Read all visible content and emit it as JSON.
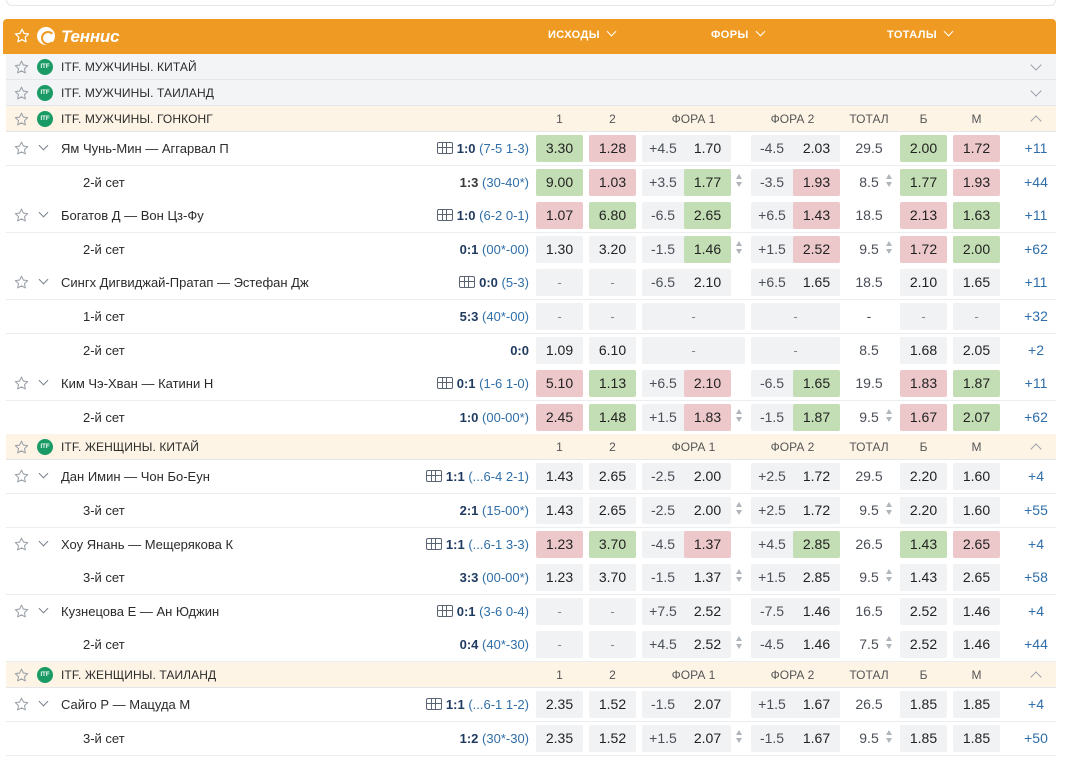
{
  "header": {
    "sport": "Теннис",
    "groups": [
      "ИСХОДЫ",
      "ФОРЫ",
      "ТОТАЛЫ"
    ],
    "accent": "#ee9a23"
  },
  "colheaders": [
    "1",
    "2",
    "ФОРА 1",
    "ФОРА 2",
    "ТОТАЛ",
    "Б",
    "М"
  ],
  "leagues": [
    {
      "name": "ITF. МУЖЧИНЫ. КИТАЙ",
      "icon": "ITF",
      "expanded": false
    },
    {
      "name": "ITF. МУЖЧИНЫ. ТАИЛАНД",
      "icon": "ITF",
      "expanded": false
    },
    {
      "name": "ITF. МУЖЧИНЫ. ГОНКОНГ",
      "icon": "ITF",
      "expanded": true
    },
    {
      "name": "ITF. ЖЕНЩИНЫ. КИТАЙ",
      "icon": "ITF",
      "expanded": true
    },
    {
      "name": "ITF. ЖЕНЩИНЫ. ТАИЛАНД",
      "icon": "ITF",
      "expanded": true
    }
  ],
  "rows": [
    {
      "kind": "match",
      "teams": "Ям Чунь-Мин — Аггарвал П",
      "score": "1:0",
      "detail": "(7-5 1-3)",
      "o1": "3.30",
      "o1s": "up",
      "o2": "1.28",
      "o2s": "down",
      "h1": "+4.5",
      "h1o": "1.70",
      "h1s": "",
      "h2": "-4.5",
      "h2o": "2.03",
      "h2s": "",
      "tot": "29.5",
      "b": "2.00",
      "bs": "up",
      "m": "1.72",
      "ms": "down",
      "more": "+11"
    },
    {
      "kind": "set",
      "teams": "2-й сет",
      "score": "1:3",
      "detail": "(30-40*)",
      "hl": true,
      "o1": "9.00",
      "o1s": "up",
      "o2": "1.03",
      "o2s": "down",
      "h1": "+3.5",
      "h1o": "1.77",
      "h1s": "up",
      "h2": "-3.5",
      "h2o": "1.93",
      "h2s": "down",
      "tot": "8.5",
      "b": "1.77",
      "bs": "up",
      "m": "1.93",
      "ms": "down",
      "more": "+44",
      "spin": true
    },
    {
      "kind": "match",
      "teams": "Богатов Д — Вон Цз-Фу",
      "score": "1:0",
      "detail": "(6-2 0-1)",
      "o1": "1.07",
      "o1s": "down",
      "o2": "6.80",
      "o2s": "up",
      "h1": "-6.5",
      "h1o": "2.65",
      "h1s": "up",
      "h2": "+6.5",
      "h2o": "1.43",
      "h2s": "down",
      "tot": "18.5",
      "b": "2.13",
      "bs": "down",
      "m": "1.63",
      "ms": "up",
      "more": "+11"
    },
    {
      "kind": "set",
      "teams": "2-й сет",
      "score": "0:1",
      "detail": "(00*-00)",
      "o1": "1.30",
      "o1s": "",
      "o2": "3.20",
      "o2s": "",
      "h1": "-1.5",
      "h1o": "1.46",
      "h1s": "up",
      "h2": "+1.5",
      "h2o": "2.52",
      "h2s": "down",
      "tot": "9.5",
      "b": "1.72",
      "bs": "down",
      "m": "2.00",
      "ms": "up",
      "more": "+62",
      "spin": true
    },
    {
      "kind": "match",
      "teams": "Сингх Дигвиджай-Пратап — Эстефан Дж",
      "score": "0:0",
      "detail": "(5-3)",
      "o1": "-",
      "o1s": "dim",
      "o2": "-",
      "o2s": "dim",
      "h1": "-6.5",
      "h1o": "2.10",
      "h1s": "",
      "h2": "+6.5",
      "h2o": "1.65",
      "h2s": "",
      "tot": "18.5",
      "b": "2.10",
      "bs": "",
      "m": "1.65",
      "ms": "",
      "more": "+11"
    },
    {
      "kind": "set",
      "teams": "1-й сет",
      "score": "5:3",
      "detail": "(40*-00)",
      "o1": "-",
      "o1s": "dim",
      "o2": "-",
      "o2s": "dim",
      "h1dash": true,
      "h1": "-",
      "h2dash": true,
      "h2": "-",
      "tot": "-",
      "b": "-",
      "bs": "dim",
      "m": "-",
      "ms": "dim",
      "more": "+32"
    },
    {
      "kind": "set",
      "teams": "2-й сет",
      "score": "0:0",
      "detail": "",
      "o1": "1.09",
      "o1s": "",
      "o2": "6.10",
      "o2s": "",
      "h1dash": true,
      "h1": "-",
      "h2dash": true,
      "h2": "-",
      "tot": "8.5",
      "b": "1.68",
      "bs": "",
      "m": "2.05",
      "ms": "",
      "more": "+2"
    },
    {
      "kind": "match",
      "teams": "Ким Чэ-Хван — Катини Н",
      "score": "0:1",
      "detail": "(1-6 1-0)",
      "o1": "5.10",
      "o1s": "down",
      "o2": "1.13",
      "o2s": "up",
      "h1": "+6.5",
      "h1o": "2.10",
      "h1s": "down",
      "h2": "-6.5",
      "h2o": "1.65",
      "h2s": "up",
      "tot": "19.5",
      "b": "1.83",
      "bs": "down",
      "m": "1.87",
      "ms": "up",
      "more": "+11"
    },
    {
      "kind": "set",
      "teams": "2-й сет",
      "score": "1:0",
      "detail": "(00-00*)",
      "o1": "2.45",
      "o1s": "down",
      "o2": "1.48",
      "o2s": "up",
      "h1": "+1.5",
      "h1o": "1.83",
      "h1s": "down",
      "h2": "-1.5",
      "h2o": "1.87",
      "h2s": "up",
      "tot": "9.5",
      "b": "1.67",
      "bs": "down",
      "m": "2.07",
      "ms": "up",
      "more": "+62",
      "spin": true
    },
    {
      "kind": "match",
      "teams": "Дан Имин — Чон Бо-Еун",
      "score": "1:1",
      "detail": "(...6-4 2-1)",
      "o1": "1.43",
      "o1s": "",
      "o2": "2.65",
      "o2s": "",
      "h1": "-2.5",
      "h1o": "2.00",
      "h1s": "",
      "h2": "+2.5",
      "h2o": "1.72",
      "h2s": "",
      "tot": "29.5",
      "b": "2.20",
      "bs": "",
      "m": "1.60",
      "ms": "",
      "more": "+4"
    },
    {
      "kind": "set",
      "teams": "3-й сет",
      "score": "2:1",
      "detail": "(15-00*)",
      "o1": "1.43",
      "o1s": "",
      "o2": "2.65",
      "o2s": "",
      "h1": "-2.5",
      "h1o": "2.00",
      "h1s": "",
      "h2": "+2.5",
      "h2o": "1.72",
      "h2s": "",
      "tot": "9.5",
      "b": "2.20",
      "bs": "",
      "m": "1.60",
      "ms": "",
      "more": "+55",
      "spin": true
    },
    {
      "kind": "match",
      "teams": "Хоу Янань — Мещерякова К",
      "score": "1:1",
      "detail": "(...6-1 3-3)",
      "o1": "1.23",
      "o1s": "down",
      "o2": "3.70",
      "o2s": "up",
      "h1": "-4.5",
      "h1o": "1.37",
      "h1s": "down",
      "h2": "+4.5",
      "h2o": "2.85",
      "h2s": "up",
      "tot": "26.5",
      "b": "1.43",
      "bs": "up",
      "m": "2.65",
      "ms": "down",
      "more": "+4"
    },
    {
      "kind": "set",
      "teams": "3-й сет",
      "score": "3:3",
      "detail": "(00-00*)",
      "o1": "1.23",
      "o1s": "",
      "o2": "3.70",
      "o2s": "",
      "h1": "-1.5",
      "h1o": "1.37",
      "h1s": "",
      "h2": "+1.5",
      "h2o": "2.85",
      "h2s": "",
      "tot": "9.5",
      "b": "1.43",
      "bs": "",
      "m": "2.65",
      "ms": "",
      "more": "+58",
      "spin": true
    },
    {
      "kind": "match",
      "teams": "Кузнецова Е — Ан Юджин",
      "score": "0:1",
      "detail": "(3-6 0-4)",
      "o1": "-",
      "o1s": "dim",
      "o2": "-",
      "o2s": "dim",
      "h1": "+7.5",
      "h1o": "2.52",
      "h1s": "",
      "h2": "-7.5",
      "h2o": "1.46",
      "h2s": "",
      "tot": "16.5",
      "b": "2.52",
      "bs": "",
      "m": "1.46",
      "ms": "",
      "more": "+4"
    },
    {
      "kind": "set",
      "teams": "2-й сет",
      "score": "0:4",
      "detail": "(40*-30)",
      "o1": "-",
      "o1s": "dim",
      "o2": "-",
      "o2s": "dim",
      "h1": "+4.5",
      "h1o": "2.52",
      "h1s": "",
      "h2": "-4.5",
      "h2o": "1.46",
      "h2s": "",
      "tot": "7.5",
      "b": "2.52",
      "bs": "",
      "m": "1.46",
      "ms": "",
      "more": "+44",
      "spin": true
    },
    {
      "kind": "match",
      "teams": "Сайго Р — Мацуда М",
      "score": "1:1",
      "detail": "(...6-1 1-2)",
      "o1": "2.35",
      "o1s": "",
      "o2": "1.52",
      "o2s": "",
      "h1": "-1.5",
      "h1o": "2.07",
      "h1s": "",
      "h2": "+1.5",
      "h2o": "1.67",
      "h2s": "",
      "tot": "26.5",
      "b": "1.85",
      "bs": "",
      "m": "1.85",
      "ms": "",
      "more": "+4"
    },
    {
      "kind": "set",
      "teams": "3-й сет",
      "score": "1:2",
      "detail": "(30*-30)",
      "o1": "2.35",
      "o1s": "",
      "o2": "1.52",
      "o2s": "",
      "h1": "+1.5",
      "h1o": "2.07",
      "h1s": "",
      "h2": "-1.5",
      "h2o": "1.67",
      "h2s": "",
      "tot": "9.5",
      "b": "1.85",
      "bs": "",
      "m": "1.85",
      "ms": "",
      "more": "+50",
      "spin": true
    }
  ]
}
